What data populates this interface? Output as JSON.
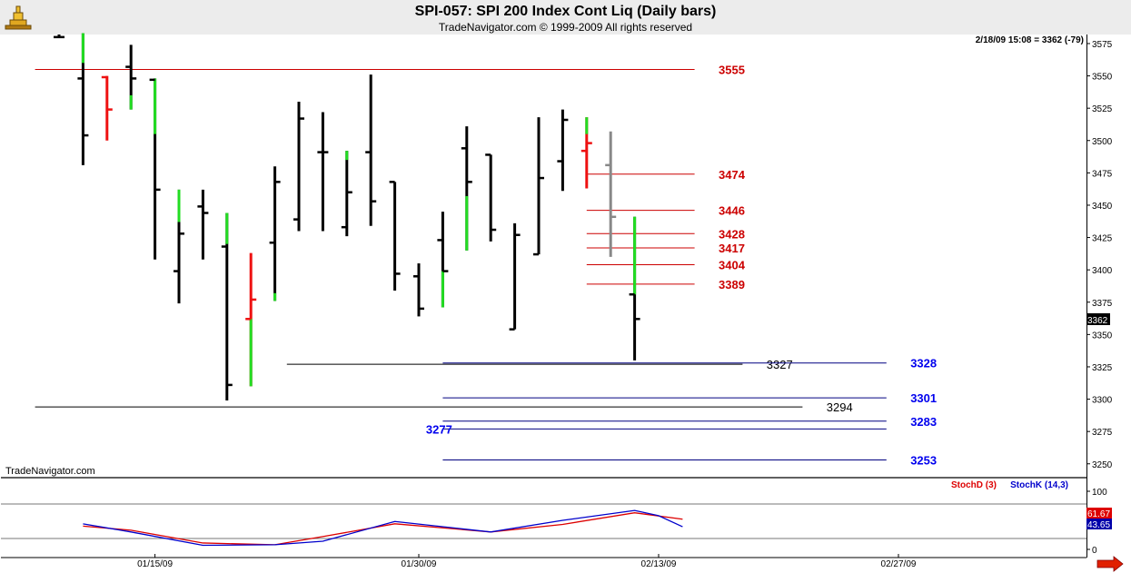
{
  "header": {
    "title": "SPI-057:  SPI 200 Index Cont Liq  (Daily bars)",
    "subtitle": "TradeNavigator.com © 1999-2009 All rights reserved",
    "logo_icon": "navigator-logo-icon"
  },
  "price_panel": {
    "status": "2/18/09 15:08 = 3362 (-79)",
    "watermark": "TradeNavigator.com",
    "last_price": "3362"
  },
  "stoch_panel": {
    "legend_d": "StochD (3)",
    "legend_k": "StochK (14,3)",
    "readout_d": "61.67",
    "readout_k": "43.65"
  },
  "nav": {
    "scroll_arrow_icon": "arrow-right-icon"
  },
  "colors": {
    "up_bar": "#22dd22",
    "down_bar": "#ee1111",
    "neutral_bar": "#000000",
    "current_bar": "#888888",
    "resistance": "#cc0000",
    "support": "#000080",
    "support_label": "#0000ee",
    "stoch_d": "#dd0000",
    "stoch_k": "#0000cc"
  },
  "chart_data": [
    {
      "type": "bar",
      "subtype": "ohlc",
      "title": "SPI-057:  SPI 200 Index Cont Liq  (Daily bars)",
      "y_axis_ticks": [
        3575,
        3550,
        3525,
        3500,
        3475,
        3450,
        3425,
        3400,
        3375,
        3350,
        3325,
        3300,
        3275,
        3250
      ],
      "ylim": [
        3240,
        3582
      ],
      "x_axis_labels": [
        {
          "label": "01/15/09",
          "bar": 4
        },
        {
          "label": "01/30/09",
          "bar": 15
        },
        {
          "label": "02/13/09",
          "bar": 25
        },
        {
          "label": "02/27/09",
          "bar": 35
        }
      ],
      "x_range_bars": [
        0,
        44.5
      ],
      "bars": [
        {
          "open": 3580,
          "high": 3582,
          "low": 3580,
          "close": 3580,
          "style": "black"
        },
        {
          "open": 3548,
          "high": 3583,
          "low": 3481,
          "close": 3504,
          "style": "black",
          "highlight": "green",
          "highlight_range": [
            3560,
            3583
          ]
        },
        {
          "open": 3549,
          "high": 3550,
          "low": 3500,
          "close": 3524,
          "style": "red"
        },
        {
          "open": 3557,
          "high": 3574,
          "low": 3524,
          "close": 3548,
          "style": "black",
          "highlight": "green",
          "highlight_range": [
            3524,
            3535
          ]
        },
        {
          "open": 3547,
          "high": 3548,
          "low": 3408,
          "close": 3462,
          "style": "black",
          "highlight": "green",
          "highlight_range": [
            3505,
            3548
          ]
        },
        {
          "open": 3399,
          "high": 3462,
          "low": 3374,
          "close": 3428,
          "style": "black",
          "highlight": "green",
          "highlight_range": [
            3437,
            3462
          ]
        },
        {
          "open": 3449,
          "high": 3462,
          "low": 3408,
          "close": 3444,
          "style": "black"
        },
        {
          "open": 3418,
          "high": 3444,
          "low": 3299,
          "close": 3311,
          "style": "black",
          "highlight": "green",
          "highlight_range": [
            3420,
            3444
          ]
        },
        {
          "open": 3362,
          "high": 3413,
          "low": 3310,
          "close": 3377,
          "style": "red",
          "highlight": "green",
          "highlight_range": [
            3310,
            3362
          ]
        },
        {
          "open": 3421,
          "high": 3480,
          "low": 3376,
          "close": 3468,
          "style": "black",
          "highlight": "green",
          "highlight_range": [
            3376,
            3382
          ]
        },
        {
          "open": 3439,
          "high": 3530,
          "low": 3430,
          "close": 3517,
          "style": "black"
        },
        {
          "open": 3491,
          "high": 3522,
          "low": 3430,
          "close": 3491,
          "style": "black"
        },
        {
          "open": 3433,
          "high": 3492,
          "low": 3426,
          "close": 3460,
          "style": "black",
          "highlight": "green",
          "highlight_range": [
            3485,
            3492
          ]
        },
        {
          "open": 3491,
          "high": 3551,
          "low": 3434,
          "close": 3453,
          "style": "black"
        },
        {
          "open": 3468,
          "high": 3468,
          "low": 3384,
          "close": 3397,
          "style": "black"
        },
        {
          "open": 3395,
          "high": 3405,
          "low": 3364,
          "close": 3370,
          "style": "black"
        },
        {
          "open": 3423,
          "high": 3445,
          "low": 3371,
          "close": 3399,
          "style": "black",
          "highlight": "green",
          "highlight_range": [
            3371,
            3399
          ]
        },
        {
          "open": 3494,
          "high": 3511,
          "low": 3415,
          "close": 3468,
          "style": "black",
          "highlight": "green",
          "highlight_range": [
            3415,
            3457
          ]
        },
        {
          "open": 3489,
          "high": 3489,
          "low": 3422,
          "close": 3431,
          "style": "black"
        },
        {
          "open": 3354,
          "high": 3436,
          "low": 3354,
          "close": 3427,
          "style": "black"
        },
        {
          "open": 3412,
          "high": 3518,
          "low": 3412,
          "close": 3471,
          "style": "black"
        },
        {
          "open": 3484,
          "high": 3524,
          "low": 3461,
          "close": 3516,
          "style": "black"
        },
        {
          "open": 3492,
          "high": 3518,
          "low": 3463,
          "close": 3498,
          "style": "red",
          "highlight": "green",
          "highlight_range": [
            3505,
            3518
          ]
        },
        {
          "open": 3481,
          "high": 3507,
          "low": 3410,
          "close": 3441,
          "style": "gray"
        },
        {
          "open": 3381,
          "high": 3441,
          "low": 3330,
          "close": 3362,
          "style": "black",
          "highlight": "green",
          "highlight_range": [
            3381,
            3441
          ]
        }
      ],
      "levels": [
        {
          "value": 3555,
          "label": "3555",
          "kind": "resistance",
          "from_bar": -1,
          "to_bar": 26.5,
          "label_bar": 27.5
        },
        {
          "value": 3474,
          "label": "3474",
          "kind": "resistance",
          "from_bar": 22,
          "to_bar": 26.5,
          "label_bar": 27.5
        },
        {
          "value": 3446,
          "label": "3446",
          "kind": "resistance",
          "from_bar": 22,
          "to_bar": 26.5,
          "label_bar": 27.5
        },
        {
          "value": 3428,
          "label": "3428",
          "kind": "resistance",
          "from_bar": 22,
          "to_bar": 26.5,
          "label_bar": 27.5
        },
        {
          "value": 3417,
          "label": "3417",
          "kind": "resistance",
          "from_bar": 22,
          "to_bar": 26.5,
          "label_bar": 27.5
        },
        {
          "value": 3404,
          "label": "3404",
          "kind": "resistance",
          "from_bar": 22,
          "to_bar": 26.5,
          "label_bar": 27.5
        },
        {
          "value": 3389,
          "label": "3389",
          "kind": "resistance",
          "from_bar": 22,
          "to_bar": 26.5,
          "label_bar": 27.5
        },
        {
          "value": 3327,
          "label": "3327",
          "kind": "swing",
          "from_bar": 9.5,
          "to_bar": 28.5,
          "label_bar": 29.5
        },
        {
          "value": 3294,
          "label": "3294",
          "kind": "swing",
          "from_bar": -1,
          "to_bar": 31,
          "label_bar": 32
        },
        {
          "value": 3328,
          "label": "3328",
          "kind": "support",
          "from_bar": 16,
          "to_bar": 34.5,
          "label_bar": 35.5
        },
        {
          "value": 3301,
          "label": "3301",
          "kind": "support",
          "from_bar": 16,
          "to_bar": 34.5,
          "label_bar": 35.5
        },
        {
          "value": 3283,
          "label": "3283",
          "kind": "support",
          "from_bar": 16,
          "to_bar": 34.5,
          "label_bar": 35.5
        },
        {
          "value": 3277,
          "label": "3277",
          "kind": "support",
          "from_bar": 16,
          "to_bar": 34.5,
          "label_bar": 15.3
        },
        {
          "value": 3253,
          "label": "3253",
          "kind": "support",
          "from_bar": 16,
          "to_bar": 34.5,
          "label_bar": 35.5
        }
      ]
    },
    {
      "type": "line",
      "title": "",
      "ylim": [
        0,
        100
      ],
      "y_axis_ticks": [
        100,
        0
      ],
      "series": [
        {
          "name": "StochD (3)",
          "x": [
            1,
            3,
            6,
            9,
            11,
            14,
            18,
            21,
            24,
            26
          ],
          "values": [
            40,
            33,
            11,
            8,
            22,
            44,
            30,
            43,
            63,
            52
          ]
        },
        {
          "name": "StochK (14,3)",
          "x": [
            1,
            3,
            6,
            9,
            11,
            14,
            18,
            21,
            24,
            25,
            26
          ],
          "values": [
            44,
            30,
            7,
            8,
            14,
            48,
            30,
            50,
            67,
            58,
            39
          ]
        }
      ]
    }
  ]
}
